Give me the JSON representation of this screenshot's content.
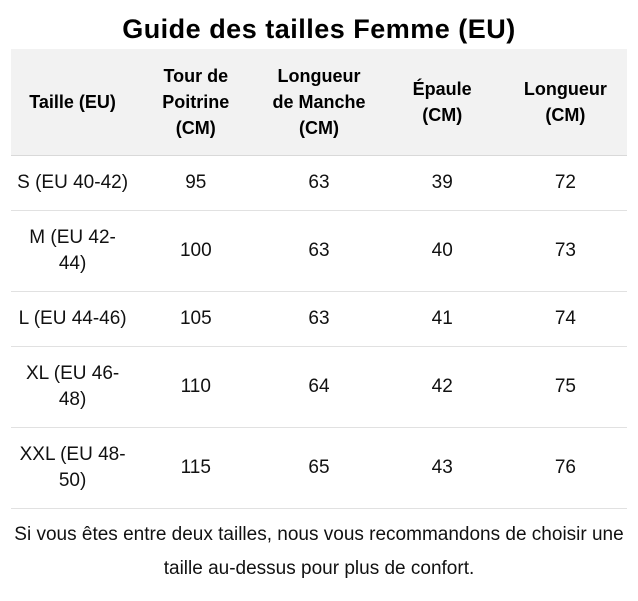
{
  "title": "Guide des tailles Femme (EU)",
  "table": {
    "headers": [
      "Taille (EU)",
      "Tour de\nPoitrine\n(CM)",
      "Longueur\nde Manche\n(CM)",
      "Épaule\n(CM)",
      "Longueur\n(CM)"
    ],
    "rows": [
      {
        "size": "S (EU 40-42)",
        "chest": "95",
        "sleeve": "63",
        "shoulder": "39",
        "length": "72"
      },
      {
        "size": "M (EU 42-\n44)",
        "chest": "100",
        "sleeve": "63",
        "shoulder": "40",
        "length": "73"
      },
      {
        "size": "L (EU 44-46)",
        "chest": "105",
        "sleeve": "63",
        "shoulder": "41",
        "length": "74"
      },
      {
        "size": "XL (EU 46-\n48)",
        "chest": "110",
        "sleeve": "64",
        "shoulder": "42",
        "length": "75"
      },
      {
        "size": "XXL (EU 48-\n50)",
        "chest": "115",
        "sleeve": "65",
        "shoulder": "43",
        "length": "76"
      }
    ]
  },
  "footer_note": "Si vous êtes entre deux tailles, nous vous recommandons de choisir une taille au-dessus pour plus de confort.",
  "colors": {
    "header_bg": "#f2f2f2",
    "divider": "#e1e1e1",
    "header_divider": "#d9d9d9",
    "text": "#111111"
  }
}
